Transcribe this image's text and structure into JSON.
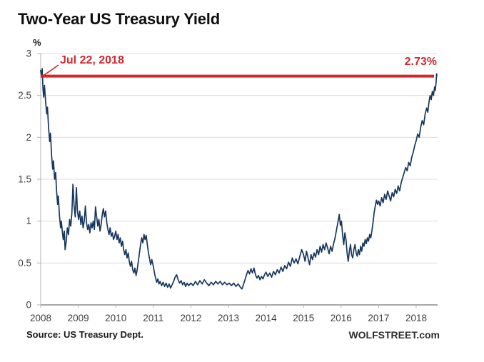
{
  "title": "Two-Year US Treasury Yield",
  "y_axis_unit": "%",
  "annotations": {
    "date_label": "Jul 22, 2018",
    "value_label": "2.73%"
  },
  "source": "Source: US Treasury Dept.",
  "branding": "WOLFSTREET.com",
  "colors": {
    "series": "#17375e",
    "highlight": "#d1282e",
    "grid": "#dcdcdc",
    "axis": "#b3b3b3",
    "axis_bottom": "#8c8c8c",
    "tick_text": "#3f3f3f"
  },
  "chart_data": {
    "type": "line",
    "title": "Two-Year US Treasury Yield",
    "xlabel": "",
    "ylabel": "%",
    "ylim": [
      0,
      3
    ],
    "xlim": [
      2008,
      2018.57
    ],
    "grid": "horizontal",
    "legend": "none",
    "y_ticks": [
      "0",
      "0.5",
      "1",
      "1.5",
      "2",
      "2.5",
      "3"
    ],
    "x_ticks": [
      "2008",
      "2009",
      "2010",
      "2011",
      "2012",
      "2013",
      "2014",
      "2015",
      "2016",
      "2017",
      "2018"
    ],
    "ref_line": {
      "value": 2.73,
      "label": "2.73%",
      "date": "Jul 22, 2018"
    },
    "series": [
      {
        "name": "2-Year US Treasury Yield (%)",
        "points": [
          [
            2008.0,
            2.8
          ],
          [
            2008.02,
            2.72
          ],
          [
            2008.04,
            2.82
          ],
          [
            2008.06,
            2.58
          ],
          [
            2008.08,
            2.48
          ],
          [
            2008.1,
            2.62
          ],
          [
            2008.13,
            2.44
          ],
          [
            2008.16,
            2.28
          ],
          [
            2008.18,
            2.36
          ],
          [
            2008.21,
            2.12
          ],
          [
            2008.24,
            1.95
          ],
          [
            2008.26,
            2.05
          ],
          [
            2008.29,
            1.78
          ],
          [
            2008.32,
            1.62
          ],
          [
            2008.34,
            1.72
          ],
          [
            2008.37,
            1.5
          ],
          [
            2008.4,
            1.58
          ],
          [
            2008.42,
            1.38
          ],
          [
            2008.45,
            1.2
          ],
          [
            2008.47,
            1.3
          ],
          [
            2008.5,
            1.06
          ],
          [
            2008.53,
            0.92
          ],
          [
            2008.55,
            1.0
          ],
          [
            2008.58,
            0.86
          ],
          [
            2008.6,
            0.78
          ],
          [
            2008.63,
            0.88
          ],
          [
            2008.65,
            0.66
          ],
          [
            2008.68,
            0.76
          ],
          [
            2008.71,
            0.92
          ],
          [
            2008.74,
            0.84
          ],
          [
            2008.77,
            1.02
          ],
          [
            2008.8,
            0.94
          ],
          [
            2008.83,
            1.1
          ],
          [
            2008.86,
            1.44
          ],
          [
            2008.89,
            1.18
          ],
          [
            2008.92,
            1.05
          ],
          [
            2008.95,
            1.4
          ],
          [
            2008.98,
            1.12
          ],
          [
            2009.01,
            1.02
          ],
          [
            2009.04,
            1.12
          ],
          [
            2009.07,
            0.96
          ],
          [
            2009.1,
            1.06
          ],
          [
            2009.13,
            0.92
          ],
          [
            2009.16,
            1.0
          ],
          [
            2009.19,
            1.18
          ],
          [
            2009.22,
            0.98
          ],
          [
            2009.25,
            0.9
          ],
          [
            2009.28,
            0.96
          ],
          [
            2009.31,
            0.86
          ],
          [
            2009.34,
            0.98
          ],
          [
            2009.37,
            0.92
          ],
          [
            2009.4,
            1.0
          ],
          [
            2009.43,
            0.9
          ],
          [
            2009.46,
            1.17
          ],
          [
            2009.49,
            1.05
          ],
          [
            2009.52,
            0.94
          ],
          [
            2009.55,
            1.02
          ],
          [
            2009.58,
            0.88
          ],
          [
            2009.61,
            0.96
          ],
          [
            2009.64,
            1.08
          ],
          [
            2009.67,
            1.15
          ],
          [
            2009.7,
            1.05
          ],
          [
            2009.73,
            1.12
          ],
          [
            2009.76,
            0.98
          ],
          [
            2009.79,
            0.9
          ],
          [
            2009.82,
            0.84
          ],
          [
            2009.85,
            0.92
          ],
          [
            2009.88,
            0.82
          ],
          [
            2009.91,
            0.86
          ],
          [
            2009.94,
            0.78
          ],
          [
            2009.97,
            0.82
          ],
          [
            2010.0,
            0.88
          ],
          [
            2010.03,
            0.78
          ],
          [
            2010.06,
            0.84
          ],
          [
            2010.09,
            0.74
          ],
          [
            2010.12,
            0.8
          ],
          [
            2010.15,
            0.7
          ],
          [
            2010.18,
            0.76
          ],
          [
            2010.21,
            0.66
          ],
          [
            2010.24,
            0.6
          ],
          [
            2010.27,
            0.66
          ],
          [
            2010.3,
            0.56
          ],
          [
            2010.33,
            0.62
          ],
          [
            2010.36,
            0.52
          ],
          [
            2010.39,
            0.46
          ],
          [
            2010.42,
            0.52
          ],
          [
            2010.45,
            0.42
          ],
          [
            2010.48,
            0.38
          ],
          [
            2010.51,
            0.44
          ],
          [
            2010.54,
            0.35
          ],
          [
            2010.57,
            0.42
          ],
          [
            2010.6,
            0.52
          ],
          [
            2010.63,
            0.62
          ],
          [
            2010.66,
            0.72
          ],
          [
            2010.69,
            0.8
          ],
          [
            2010.72,
            0.74
          ],
          [
            2010.75,
            0.84
          ],
          [
            2010.78,
            0.78
          ],
          [
            2010.81,
            0.83
          ],
          [
            2010.84,
            0.72
          ],
          [
            2010.87,
            0.62
          ],
          [
            2010.9,
            0.55
          ],
          [
            2010.93,
            0.48
          ],
          [
            2010.96,
            0.54
          ],
          [
            2011.0,
            0.46
          ],
          [
            2011.03,
            0.38
          ],
          [
            2011.06,
            0.32
          ],
          [
            2011.09,
            0.27
          ],
          [
            2011.12,
            0.31
          ],
          [
            2011.15,
            0.25
          ],
          [
            2011.18,
            0.28
          ],
          [
            2011.22,
            0.23
          ],
          [
            2011.26,
            0.27
          ],
          [
            2011.3,
            0.22
          ],
          [
            2011.34,
            0.26
          ],
          [
            2011.38,
            0.21
          ],
          [
            2011.42,
            0.25
          ],
          [
            2011.46,
            0.2
          ],
          [
            2011.5,
            0.24
          ],
          [
            2011.54,
            0.28
          ],
          [
            2011.58,
            0.33
          ],
          [
            2011.62,
            0.36
          ],
          [
            2011.66,
            0.3
          ],
          [
            2011.7,
            0.26
          ],
          [
            2011.74,
            0.29
          ],
          [
            2011.78,
            0.24
          ],
          [
            2011.82,
            0.27
          ],
          [
            2011.86,
            0.22
          ],
          [
            2011.9,
            0.26
          ],
          [
            2011.94,
            0.23
          ],
          [
            2012.0,
            0.26
          ],
          [
            2012.06,
            0.23
          ],
          [
            2012.12,
            0.28
          ],
          [
            2012.18,
            0.24
          ],
          [
            2012.24,
            0.29
          ],
          [
            2012.3,
            0.25
          ],
          [
            2012.36,
            0.3
          ],
          [
            2012.42,
            0.26
          ],
          [
            2012.48,
            0.23
          ],
          [
            2012.54,
            0.27
          ],
          [
            2012.6,
            0.24
          ],
          [
            2012.66,
            0.28
          ],
          [
            2012.72,
            0.25
          ],
          [
            2012.78,
            0.28
          ],
          [
            2012.84,
            0.24
          ],
          [
            2012.9,
            0.27
          ],
          [
            2012.96,
            0.24
          ],
          [
            2013.02,
            0.26
          ],
          [
            2013.08,
            0.23
          ],
          [
            2013.14,
            0.26
          ],
          [
            2013.2,
            0.22
          ],
          [
            2013.26,
            0.25
          ],
          [
            2013.32,
            0.21
          ],
          [
            2013.36,
            0.19
          ],
          [
            2013.4,
            0.24
          ],
          [
            2013.44,
            0.3
          ],
          [
            2013.48,
            0.36
          ],
          [
            2013.52,
            0.41
          ],
          [
            2013.56,
            0.37
          ],
          [
            2013.6,
            0.43
          ],
          [
            2013.64,
            0.38
          ],
          [
            2013.68,
            0.44
          ],
          [
            2013.72,
            0.36
          ],
          [
            2013.76,
            0.32
          ],
          [
            2013.8,
            0.35
          ],
          [
            2013.84,
            0.3
          ],
          [
            2013.88,
            0.34
          ],
          [
            2013.92,
            0.31
          ],
          [
            2013.96,
            0.36
          ],
          [
            2014.0,
            0.39
          ],
          [
            2014.05,
            0.34
          ],
          [
            2014.1,
            0.38
          ],
          [
            2014.15,
            0.33
          ],
          [
            2014.2,
            0.4
          ],
          [
            2014.25,
            0.36
          ],
          [
            2014.3,
            0.42
          ],
          [
            2014.35,
            0.38
          ],
          [
            2014.4,
            0.45
          ],
          [
            2014.45,
            0.4
          ],
          [
            2014.5,
            0.47
          ],
          [
            2014.55,
            0.43
          ],
          [
            2014.6,
            0.51
          ],
          [
            2014.65,
            0.46
          ],
          [
            2014.7,
            0.56
          ],
          [
            2014.75,
            0.5
          ],
          [
            2014.8,
            0.55
          ],
          [
            2014.85,
            0.49
          ],
          [
            2014.9,
            0.58
          ],
          [
            2014.95,
            0.66
          ],
          [
            2015.0,
            0.6
          ],
          [
            2015.04,
            0.52
          ],
          [
            2015.08,
            0.64
          ],
          [
            2015.12,
            0.56
          ],
          [
            2015.16,
            0.48
          ],
          [
            2015.2,
            0.6
          ],
          [
            2015.24,
            0.54
          ],
          [
            2015.28,
            0.62
          ],
          [
            2015.32,
            0.57
          ],
          [
            2015.36,
            0.66
          ],
          [
            2015.4,
            0.6
          ],
          [
            2015.44,
            0.7
          ],
          [
            2015.48,
            0.63
          ],
          [
            2015.52,
            0.72
          ],
          [
            2015.56,
            0.66
          ],
          [
            2015.6,
            0.74
          ],
          [
            2015.64,
            0.68
          ],
          [
            2015.68,
            0.61
          ],
          [
            2015.72,
            0.7
          ],
          [
            2015.76,
            0.64
          ],
          [
            2015.8,
            0.73
          ],
          [
            2015.84,
            0.8
          ],
          [
            2015.88,
            0.9
          ],
          [
            2015.92,
            1.0
          ],
          [
            2015.95,
            1.08
          ],
          [
            2015.98,
            0.95
          ],
          [
            2016.01,
            1.0
          ],
          [
            2016.04,
            0.84
          ],
          [
            2016.07,
            0.72
          ],
          [
            2016.1,
            0.86
          ],
          [
            2016.13,
            0.78
          ],
          [
            2016.16,
            0.62
          ],
          [
            2016.19,
            0.52
          ],
          [
            2016.22,
            0.64
          ],
          [
            2016.25,
            0.72
          ],
          [
            2016.28,
            0.6
          ],
          [
            2016.31,
            0.56
          ],
          [
            2016.34,
            0.66
          ],
          [
            2016.37,
            0.72
          ],
          [
            2016.4,
            0.62
          ],
          [
            2016.43,
            0.58
          ],
          [
            2016.46,
            0.66
          ],
          [
            2016.49,
            0.6
          ],
          [
            2016.52,
            0.7
          ],
          [
            2016.55,
            0.64
          ],
          [
            2016.58,
            0.74
          ],
          [
            2016.61,
            0.7
          ],
          [
            2016.64,
            0.78
          ],
          [
            2016.67,
            0.73
          ],
          [
            2016.7,
            0.8
          ],
          [
            2016.73,
            0.76
          ],
          [
            2016.76,
            0.84
          ],
          [
            2016.79,
            0.8
          ],
          [
            2016.82,
            0.88
          ],
          [
            2016.85,
            0.98
          ],
          [
            2016.88,
            1.1
          ],
          [
            2016.91,
            1.18
          ],
          [
            2016.94,
            1.25
          ],
          [
            2016.97,
            1.2
          ],
          [
            2017.0,
            1.24
          ],
          [
            2017.04,
            1.18
          ],
          [
            2017.08,
            1.28
          ],
          [
            2017.12,
            1.22
          ],
          [
            2017.16,
            1.32
          ],
          [
            2017.2,
            1.26
          ],
          [
            2017.24,
            1.36
          ],
          [
            2017.28,
            1.3
          ],
          [
            2017.32,
            1.24
          ],
          [
            2017.36,
            1.34
          ],
          [
            2017.4,
            1.29
          ],
          [
            2017.44,
            1.38
          ],
          [
            2017.48,
            1.33
          ],
          [
            2017.52,
            1.42
          ],
          [
            2017.56,
            1.36
          ],
          [
            2017.6,
            1.46
          ],
          [
            2017.64,
            1.52
          ],
          [
            2017.68,
            1.58
          ],
          [
            2017.72,
            1.64
          ],
          [
            2017.76,
            1.6
          ],
          [
            2017.8,
            1.7
          ],
          [
            2017.84,
            1.66
          ],
          [
            2017.88,
            1.76
          ],
          [
            2017.92,
            1.82
          ],
          [
            2017.96,
            1.9
          ],
          [
            2018.0,
            1.96
          ],
          [
            2018.04,
            2.04
          ],
          [
            2018.08,
            2.0
          ],
          [
            2018.12,
            2.12
          ],
          [
            2018.16,
            2.2
          ],
          [
            2018.2,
            2.15
          ],
          [
            2018.24,
            2.28
          ],
          [
            2018.28,
            2.35
          ],
          [
            2018.31,
            2.3
          ],
          [
            2018.34,
            2.42
          ],
          [
            2018.37,
            2.5
          ],
          [
            2018.4,
            2.45
          ],
          [
            2018.43,
            2.55
          ],
          [
            2018.46,
            2.5
          ],
          [
            2018.49,
            2.6
          ],
          [
            2018.51,
            2.56
          ],
          [
            2018.53,
            2.66
          ],
          [
            2018.545,
            2.76
          ],
          [
            2018.55,
            2.73
          ]
        ]
      }
    ]
  }
}
